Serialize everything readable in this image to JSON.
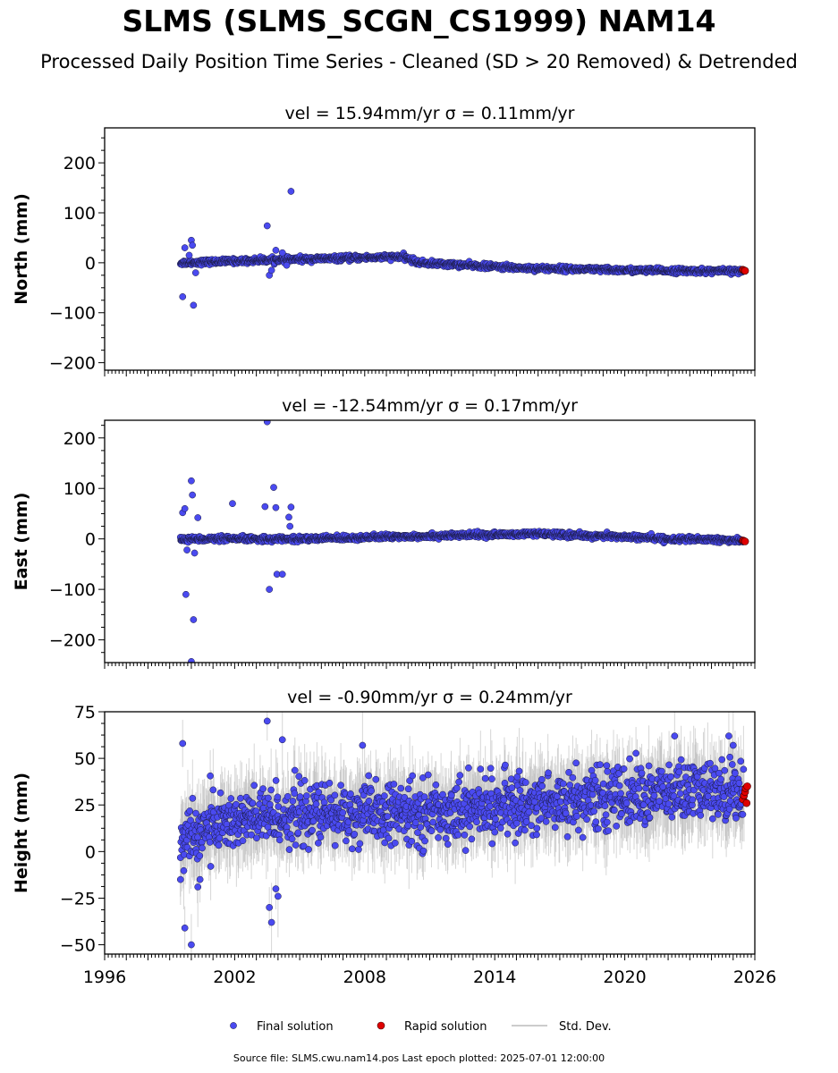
{
  "title": "SLMS (SLMS_SCGN_CS1999) NAM14",
  "subtitle": "Processed Daily Position Time Series - Cleaned (SD > 20 Removed) & Detrended",
  "footer": "Source file: SLMS.cwu.nam14.pos  Last epoch plotted: 2025-07-01 12:00:00",
  "colors": {
    "final": "#4a4af0",
    "rapid": "#e00000",
    "stddev": "#bbbbbb",
    "edge": "#1a1a40"
  },
  "legend": {
    "final": "Final solution",
    "rapid": "Rapid solution",
    "std": "Std. Dev."
  },
  "chart_data": [
    {
      "type": "scatter",
      "component": "north",
      "panel_title": "vel = 15.94mm/yr   σ = 0.11mm/yr",
      "ylabel": "North (mm)",
      "xlim": [
        1996,
        2026
      ],
      "ylim": [
        -215,
        270
      ],
      "yticks": [
        -200,
        -100,
        0,
        100,
        200
      ],
      "ytick_labels": [
        "−200",
        "−100",
        "0",
        "100",
        "200"
      ],
      "trend": [
        [
          1999.5,
          0
        ],
        [
          2004,
          6
        ],
        [
          2009.8,
          12
        ],
        [
          2010.5,
          0
        ],
        [
          2015,
          -10
        ],
        [
          2020,
          -15
        ],
        [
          2025.5,
          -17
        ]
      ],
      "noise": 2.5,
      "outliers": [
        [
          1999.6,
          -68
        ],
        [
          1999.7,
          30
        ],
        [
          1999.9,
          15
        ],
        [
          2000.0,
          45
        ],
        [
          2000.05,
          35
        ],
        [
          2000.1,
          -85
        ],
        [
          2000.2,
          -20
        ],
        [
          2003.5,
          74
        ],
        [
          2003.6,
          -25
        ],
        [
          2003.7,
          -15
        ],
        [
          2003.9,
          25
        ],
        [
          2004.2,
          20
        ],
        [
          2004.6,
          143
        ],
        [
          2004.4,
          -5
        ]
      ],
      "rapid": [
        [
          2025.45,
          -14
        ],
        [
          2025.5,
          -15
        ],
        [
          2025.55,
          -16
        ]
      ],
      "xtick_labels_visible": false
    },
    {
      "type": "scatter",
      "component": "east",
      "panel_title": "vel = -12.54mm/yr   σ = 0.17mm/yr",
      "ylabel": "East (mm)",
      "xlim": [
        1996,
        2026
      ],
      "ylim": [
        -245,
        235
      ],
      "yticks": [
        -200,
        -100,
        0,
        100,
        200
      ],
      "ytick_labels": [
        "−200",
        "−100",
        "0",
        "100",
        "200"
      ],
      "trend": [
        [
          1999.5,
          0
        ],
        [
          2005,
          0
        ],
        [
          2010,
          5
        ],
        [
          2016,
          10
        ],
        [
          2019.5,
          5
        ],
        [
          2022,
          0
        ],
        [
          2025.5,
          -3
        ]
      ],
      "noise": 2.5,
      "outliers": [
        [
          1999.6,
          52
        ],
        [
          1999.7,
          60
        ],
        [
          1999.75,
          -110
        ],
        [
          1999.8,
          -22
        ],
        [
          2000.0,
          115
        ],
        [
          2000.05,
          87
        ],
        [
          2000.1,
          -160
        ],
        [
          2000.15,
          -28
        ],
        [
          2000.3,
          42
        ],
        [
          2000.0,
          -243
        ],
        [
          2001.9,
          70
        ],
        [
          2003.4,
          64
        ],
        [
          2003.5,
          232
        ],
        [
          2003.6,
          -100
        ],
        [
          2003.8,
          102
        ],
        [
          2003.9,
          62
        ],
        [
          2003.95,
          -70
        ],
        [
          2004.2,
          -70
        ],
        [
          2004.5,
          43
        ],
        [
          2004.6,
          63
        ],
        [
          2004.55,
          25
        ]
      ],
      "rapid": [
        [
          2025.45,
          -3
        ],
        [
          2025.5,
          -4
        ],
        [
          2025.55,
          -5
        ]
      ],
      "xtick_labels_visible": false
    },
    {
      "type": "scatter",
      "component": "height",
      "panel_title": "vel = -0.90mm/yr   σ = 0.24mm/yr",
      "ylabel": "Height (mm)",
      "xlim": [
        1996,
        2026
      ],
      "ylim": [
        -55,
        75
      ],
      "yticks": [
        -50,
        -25,
        0,
        25,
        50,
        75
      ],
      "ytick_labels": [
        "−50",
        "−25",
        "0",
        "25",
        "50",
        "75"
      ],
      "trend": [
        [
          1999.5,
          5
        ],
        [
          2001,
          15
        ],
        [
          2005,
          20
        ],
        [
          2010,
          20
        ],
        [
          2015,
          25
        ],
        [
          2020,
          30
        ],
        [
          2025.5,
          33
        ]
      ],
      "noise": 8,
      "outliers": [
        [
          1999.5,
          -15
        ],
        [
          1999.6,
          58
        ],
        [
          1999.7,
          -41
        ],
        [
          2000.0,
          -50
        ],
        [
          2000.3,
          -19
        ],
        [
          2000.4,
          -15
        ],
        [
          2003.5,
          70
        ],
        [
          2003.6,
          -30
        ],
        [
          2003.7,
          -38
        ],
        [
          2003.9,
          -20
        ],
        [
          2004.0,
          -24
        ],
        [
          2004.2,
          60
        ],
        [
          2007.9,
          57
        ],
        [
          2022.3,
          62
        ],
        [
          2024.8,
          62
        ],
        [
          2025.0,
          57
        ]
      ],
      "rapid": [
        [
          2025.45,
          28
        ],
        [
          2025.5,
          30
        ],
        [
          2025.55,
          32
        ],
        [
          2025.58,
          34
        ],
        [
          2025.62,
          26
        ],
        [
          2025.65,
          35
        ]
      ],
      "xticks": [
        1996,
        2002,
        2008,
        2014,
        2020,
        2026
      ],
      "xtick_labels": [
        "1996",
        "2002",
        "2008",
        "2014",
        "2020",
        "2026"
      ],
      "xtick_labels_visible": true
    }
  ]
}
